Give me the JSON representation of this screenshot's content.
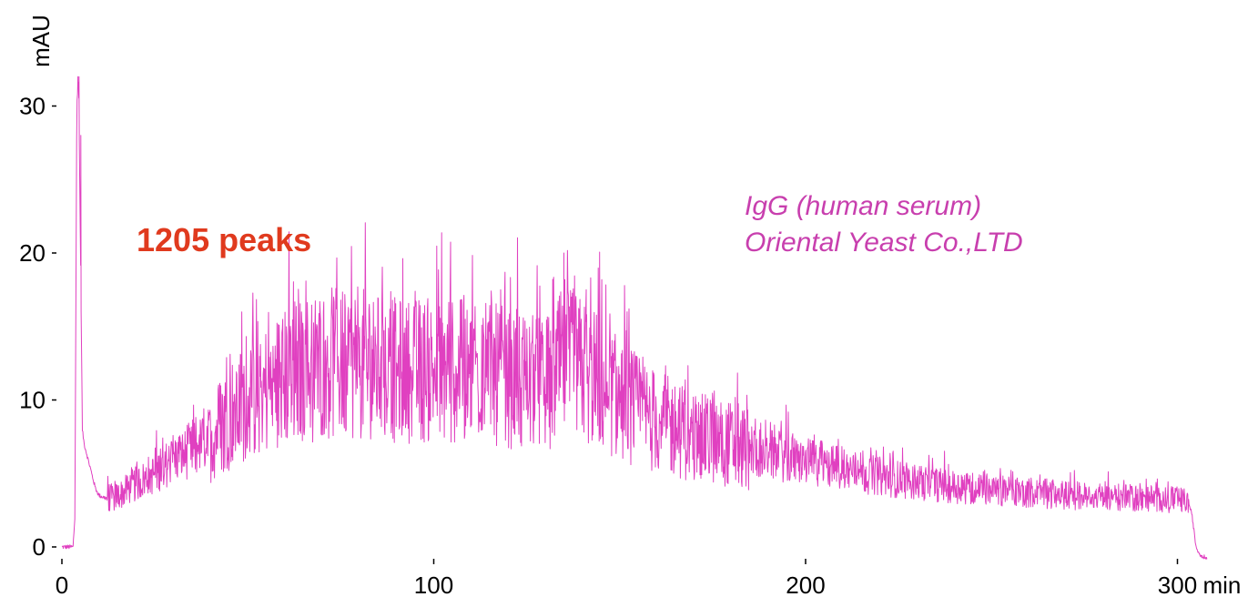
{
  "chart_data": {
    "type": "line",
    "title": "",
    "xlabel": "min",
    "ylabel": "mAU",
    "xlim": [
      0,
      310
    ],
    "ylim": [
      0,
      32
    ],
    "x_ticks": [
      "0",
      "100",
      "200",
      "300"
    ],
    "x_tick_values": [
      0,
      100,
      200,
      300
    ],
    "y_ticks": [
      "0",
      "10",
      "20",
      "30"
    ],
    "y_tick_values": [
      0,
      10,
      20,
      30
    ],
    "grid": false,
    "line_color": "#e040c0",
    "annotations": {
      "peak_count": "1205 peaks",
      "peak_count_color": "#e03a1e",
      "sample_line1": "IgG (human serum)",
      "sample_line2": "Oriental Yeast Co.,LTD",
      "sample_color": "#c83fae"
    },
    "series": [
      {
        "envelope": {
          "x": [
            0,
            3,
            3.5,
            4,
            4.5,
            5,
            5.5,
            6,
            7,
            8,
            9,
            10,
            12,
            14,
            16,
            18,
            20,
            25,
            30,
            35,
            40,
            45,
            50,
            60,
            70,
            80,
            90,
            100,
            110,
            120,
            130,
            135,
            140,
            150,
            160,
            170,
            180,
            190,
            200,
            210,
            220,
            230,
            240,
            250,
            260,
            270,
            280,
            290,
            300,
            303,
            304,
            305,
            306,
            308
          ],
          "y": [
            0,
            0,
            2,
            30,
            32,
            20,
            8,
            7,
            6,
            5,
            4,
            3.5,
            3.3,
            3.4,
            3.6,
            4,
            4.3,
            5,
            6,
            6.5,
            7.5,
            9,
            10,
            11.5,
            12.5,
            12.5,
            12,
            12,
            12,
            11.5,
            11,
            12.5,
            12,
            10,
            8.5,
            7.5,
            7,
            6.3,
            5.8,
            5.3,
            4.8,
            4.4,
            4.1,
            3.9,
            3.7,
            3.5,
            3.4,
            3.3,
            3.2,
            3.1,
            2,
            0,
            -0.5,
            -0.8
          ]
        },
        "spikes": {
          "x": [
            4.3,
            4.6,
            5.1,
            75,
            95,
            118,
            135,
            141,
            152
          ],
          "y": [
            32,
            32,
            28,
            16.8,
            17.4,
            17.5,
            20,
            17.5,
            16
          ]
        }
      }
    ]
  }
}
